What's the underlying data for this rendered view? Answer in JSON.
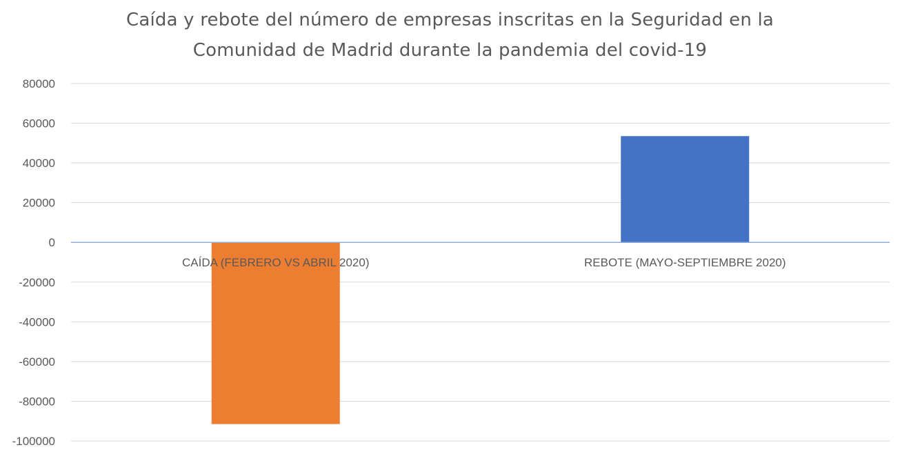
{
  "chart_data": {
    "type": "bar",
    "title_lines": [
      "Caída y rebote del número de empresas inscritas en la Seguridad en la",
      "Comunidad de Madrid durante la pandemia del covid-19"
    ],
    "categories": [
      "CAÍDA (FEBRERO VS ABRIL 2020)",
      "REBOTE (MAYO-SEPTIEMBRE 2020)"
    ],
    "values": [
      -91500,
      53500
    ],
    "bar_colors": [
      "#ED7D31",
      "#4472C4"
    ],
    "y_ticks": [
      80000,
      60000,
      40000,
      20000,
      0,
      -20000,
      -40000,
      -60000,
      -80000,
      -100000
    ],
    "ylim": [
      -100000,
      80000
    ],
    "xlabel": "",
    "ylabel": "",
    "grid": true,
    "legend": "none",
    "colors": {
      "grid": "#d9d9d9",
      "zero_axis": "#8faadc",
      "tick_text": "#595959",
      "title_text": "#595959"
    }
  }
}
